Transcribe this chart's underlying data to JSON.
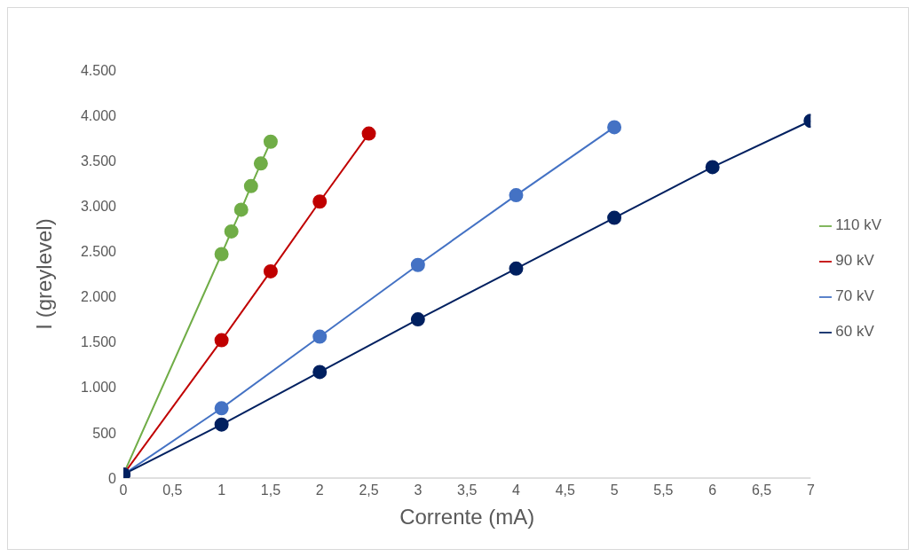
{
  "chart_data": {
    "type": "line",
    "xlabel": "Corrente (mA)",
    "ylabel": "I (greylevel)",
    "series": [
      {
        "name": "110 kV",
        "color": "#70ad47",
        "x": [
          0,
          1,
          1.1,
          1.2,
          1.3,
          1.4,
          1.5
        ],
        "values": [
          40,
          2470,
          2720,
          2960,
          3220,
          3470,
          3710
        ]
      },
      {
        "name": "90 kV",
        "color": "#c00000",
        "x": [
          0,
          1,
          1.5,
          2,
          2.5
        ],
        "values": [
          40,
          1520,
          2280,
          3050,
          3800
        ]
      },
      {
        "name": "70 kV",
        "color": "#4472c4",
        "x": [
          0,
          1,
          2,
          3,
          4,
          5
        ],
        "values": [
          40,
          770,
          1560,
          2350,
          3120,
          3870
        ]
      },
      {
        "name": "60 kV",
        "color": "#002060",
        "x": [
          0,
          1,
          2,
          3,
          4,
          5,
          6,
          7
        ],
        "values": [
          40,
          590,
          1170,
          1750,
          2310,
          2870,
          3430,
          3940
        ]
      }
    ],
    "xlim": [
      0,
      7
    ],
    "xticks": [
      0,
      {
        "value": 0.5,
        "label": "0,5"
      },
      1,
      {
        "value": 1.5,
        "label": "1,5"
      },
      2,
      {
        "value": 2.5,
        "label": "2,5"
      },
      3,
      {
        "value": 3.5,
        "label": "3,5"
      },
      4,
      {
        "value": 4.5,
        "label": "4,5"
      },
      5,
      {
        "value": 5.5,
        "label": "5,5"
      },
      6,
      {
        "value": 6.5,
        "label": "6,5"
      },
      7
    ],
    "ylim": [
      0,
      4500
    ],
    "yticks": [
      0,
      500,
      {
        "value": 1000,
        "label": "1.000"
      },
      {
        "value": 1500,
        "label": "1.500"
      },
      {
        "value": 2000,
        "label": "2.000"
      },
      {
        "value": 2500,
        "label": "2.500"
      },
      {
        "value": 3000,
        "label": "3.000"
      },
      {
        "value": 3500,
        "label": "3.500"
      },
      {
        "value": 4000,
        "label": "4.000"
      },
      {
        "value": 4500,
        "label": "4.500"
      }
    ],
    "grid": false,
    "legend": "right",
    "marker": "circle",
    "line_style": "solid"
  }
}
